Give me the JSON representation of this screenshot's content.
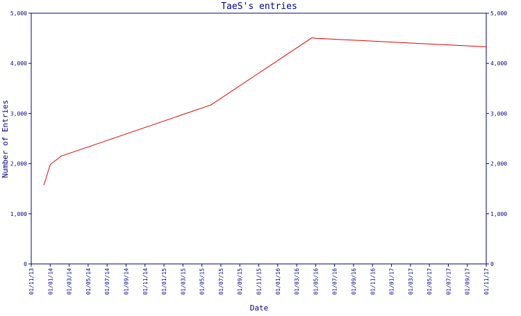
{
  "chart_data": {
    "type": "line",
    "title": "TaeS's entries",
    "xlabel": "Date",
    "ylabel": "Number of Entries",
    "x_ticks": [
      "01/11/13",
      "01/01/14",
      "01/03/14",
      "01/05/14",
      "01/07/14",
      "01/09/14",
      "01/11/14",
      "01/01/15",
      "01/03/15",
      "01/05/15",
      "01/07/15",
      "01/09/15",
      "01/11/15",
      "01/01/16",
      "01/03/16",
      "01/05/16",
      "01/07/16",
      "01/09/16",
      "01/11/16",
      "01/01/17",
      "01/03/17",
      "01/05/17",
      "01/07/17",
      "01/09/17",
      "01/11/17"
    ],
    "xlim": [
      "2013-11-01",
      "2017-11-01"
    ],
    "y_ticks": [
      "0",
      "1,000",
      "2,000",
      "3,000",
      "4,000",
      "5,000"
    ],
    "ylim": [
      0,
      5000
    ],
    "grid": false,
    "colors": {
      "line": "#e00000",
      "axis": "#000080",
      "text": "#000080"
    },
    "series": [
      {
        "points": [
          {
            "x": "2013-12-12",
            "y": 1580
          },
          {
            "x": "2014-01-01",
            "y": 1980
          },
          {
            "x": "2014-02-05",
            "y": 2150
          },
          {
            "x": "2015-06-01",
            "y": 3170
          },
          {
            "x": "2016-04-20",
            "y": 4510
          },
          {
            "x": "2016-05-01",
            "y": 4500
          },
          {
            "x": "2017-11-01",
            "y": 4330
          }
        ]
      }
    ]
  }
}
